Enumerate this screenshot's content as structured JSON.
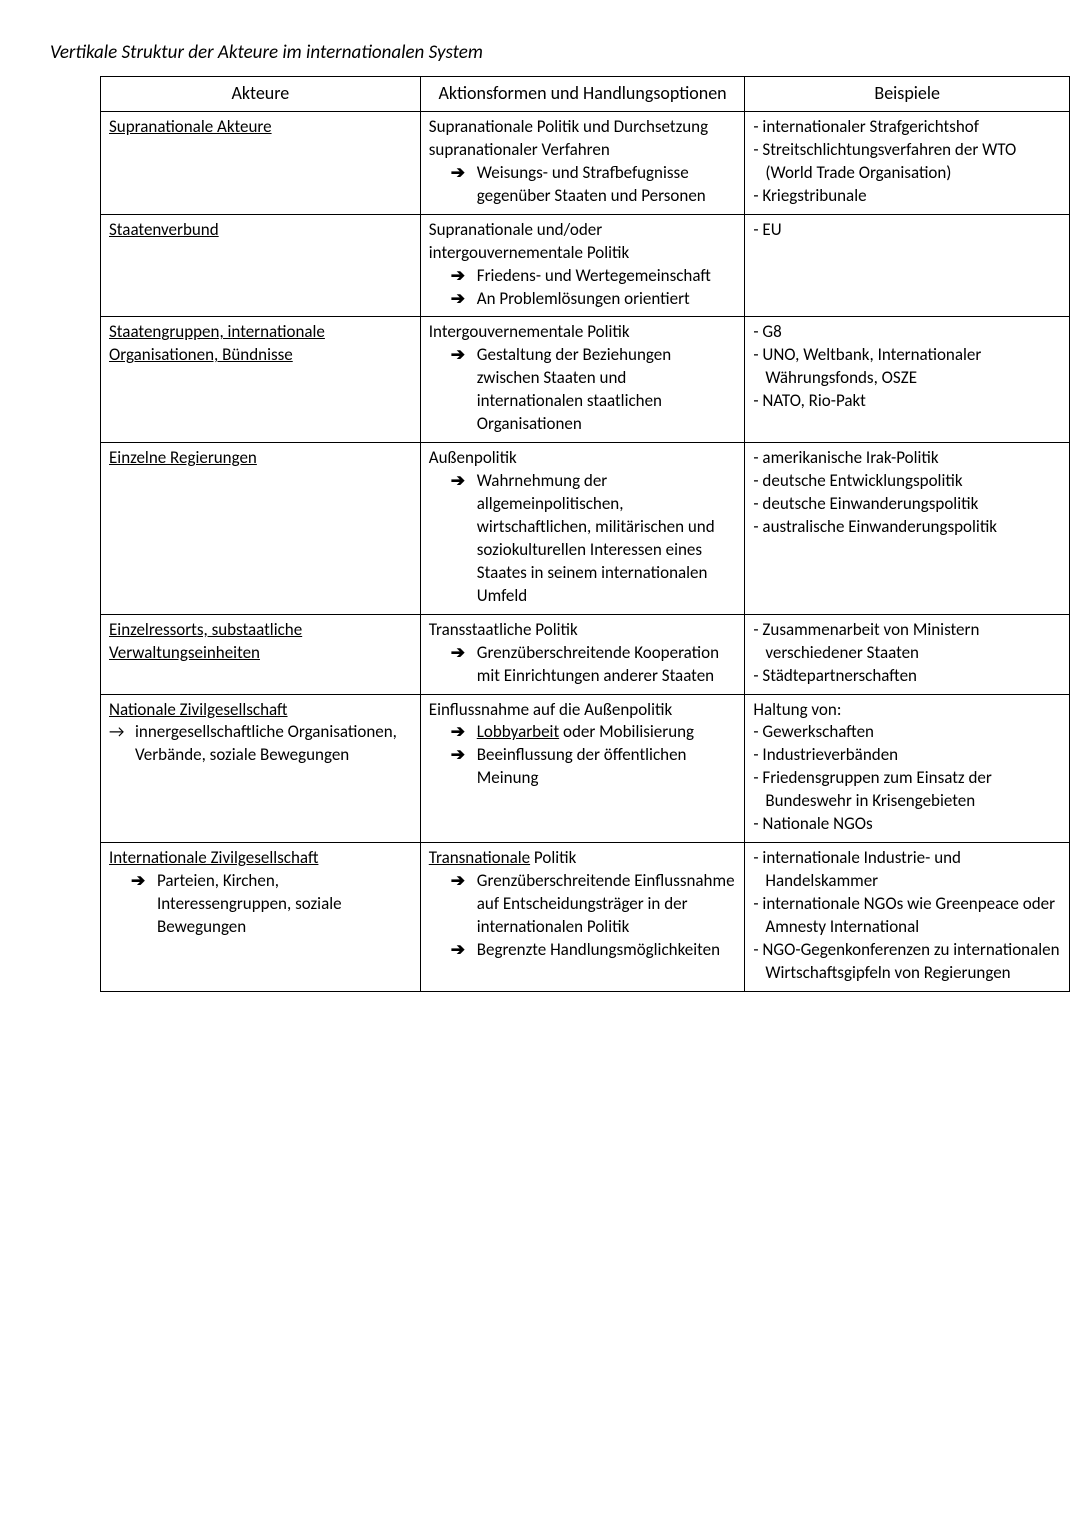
{
  "title": "Vertikale Struktur der Akteure im internationalen System",
  "columns": [
    "Akteure",
    "Aktionsformen und Handlungsoptionen",
    "Beispiele"
  ],
  "arrow": "➔",
  "arrow_light": "→",
  "rows": [
    {
      "akteur_title": "Supranationale Akteure",
      "aktion_lead": "Supranationale Politik und Durchsetzung supranationaler Verfahren",
      "aktion_bullets": [
        "Weisungs- und Strafbefugnisse gegenüber Staaten und Personen"
      ],
      "beispiele": [
        "internationaler Strafgerichtshof",
        "Streitschlichtungsverfahren der WTO (World Trade Organisation)",
        "Kriegstribunale"
      ]
    },
    {
      "akteur_title": "Staatenverbund",
      "aktion_lead": "Supranationale und/oder intergouvernementale Politik",
      "aktion_bullets": [
        "Friedens- und Wertegemeinschaft",
        "An Problemlösungen orientiert"
      ],
      "beispiele": [
        "EU"
      ]
    },
    {
      "akteur_title": "Staatengruppen, internationale Organisationen, Bündnisse",
      "aktion_lead": "Intergouvernementale Politik",
      "aktion_bullets": [
        "Gestaltung der Beziehungen zwischen Staaten und internationalen staatlichen Organisationen"
      ],
      "beispiele": [
        "G8",
        "UNO, Weltbank, Internationaler Währungsfonds, OSZE",
        "NATO, Rio-Pakt"
      ]
    },
    {
      "akteur_title": "Einzelne Regierungen",
      "aktion_lead": "Außenpolitik",
      "aktion_bullets": [
        "Wahrnehmung der allgemeinpolitischen, wirtschaftlichen, militärischen und soziokulturellen Interessen eines Staates in seinem internationalen Umfeld"
      ],
      "beispiele": [
        "amerikanische Irak-Politik",
        "deutsche Entwicklungspolitik",
        "deutsche Einwanderungspolitik",
        "australische Einwanderungspolitik"
      ]
    },
    {
      "akteur_title": "Einzelressorts, substaatliche Verwaltungseinheiten",
      "aktion_lead": "Transstaatliche Politik",
      "aktion_bullets": [
        "Grenzüberschreitende Kooperation mit Einrichtungen anderer Staaten"
      ],
      "beispiele": [
        "Zusammenarbeit von Ministern verschiedener Staaten",
        "Städtepartnerschaften"
      ]
    },
    {
      "akteur_title": "Nationale Zivilgesellschaft",
      "akteur_sub_arrow_light": "innergesellschaftliche Organisationen, Verbände, soziale Bewegungen",
      "aktion_lead": "Einflussnahme auf die Außenpolitik",
      "aktion_bullets_special": [
        {
          "pre": "",
          "underline": "Lobbyarbeit",
          "post": " oder Mobilisierung"
        },
        {
          "pre": "Beeinflussung der öffentlichen Meinung",
          "underline": "",
          "post": ""
        }
      ],
      "beispiele_lead": "Haltung von:",
      "beispiele": [
        "Gewerkschaften",
        "Industrieverbänden",
        "Friedensgruppen zum Einsatz der Bundeswehr in Krisengebieten",
        "Nationale NGOs"
      ]
    },
    {
      "akteur_title": "Internationale Zivilgesellschaft",
      "akteur_sub_arrow_bold": "Parteien, Kirchen, Interessengruppen, soziale Bewegungen",
      "aktion_lead_parts": {
        "underline": "Transnationale",
        "post": " Politik"
      },
      "aktion_bullets": [
        "Grenzüberschreitende Einflussnahme auf Entscheidungsträger in der internationalen Politik",
        "Begrenzte Handlungsmöglichkeiten"
      ],
      "beispiele": [
        "internationale Industrie- und Handelskammer",
        "internationale NGOs wie Greenpeace oder Amnesty International",
        "NGO-Gegenkonferenzen zu internationalen Wirtschaftsgipfeln von Regierungen"
      ]
    }
  ]
}
